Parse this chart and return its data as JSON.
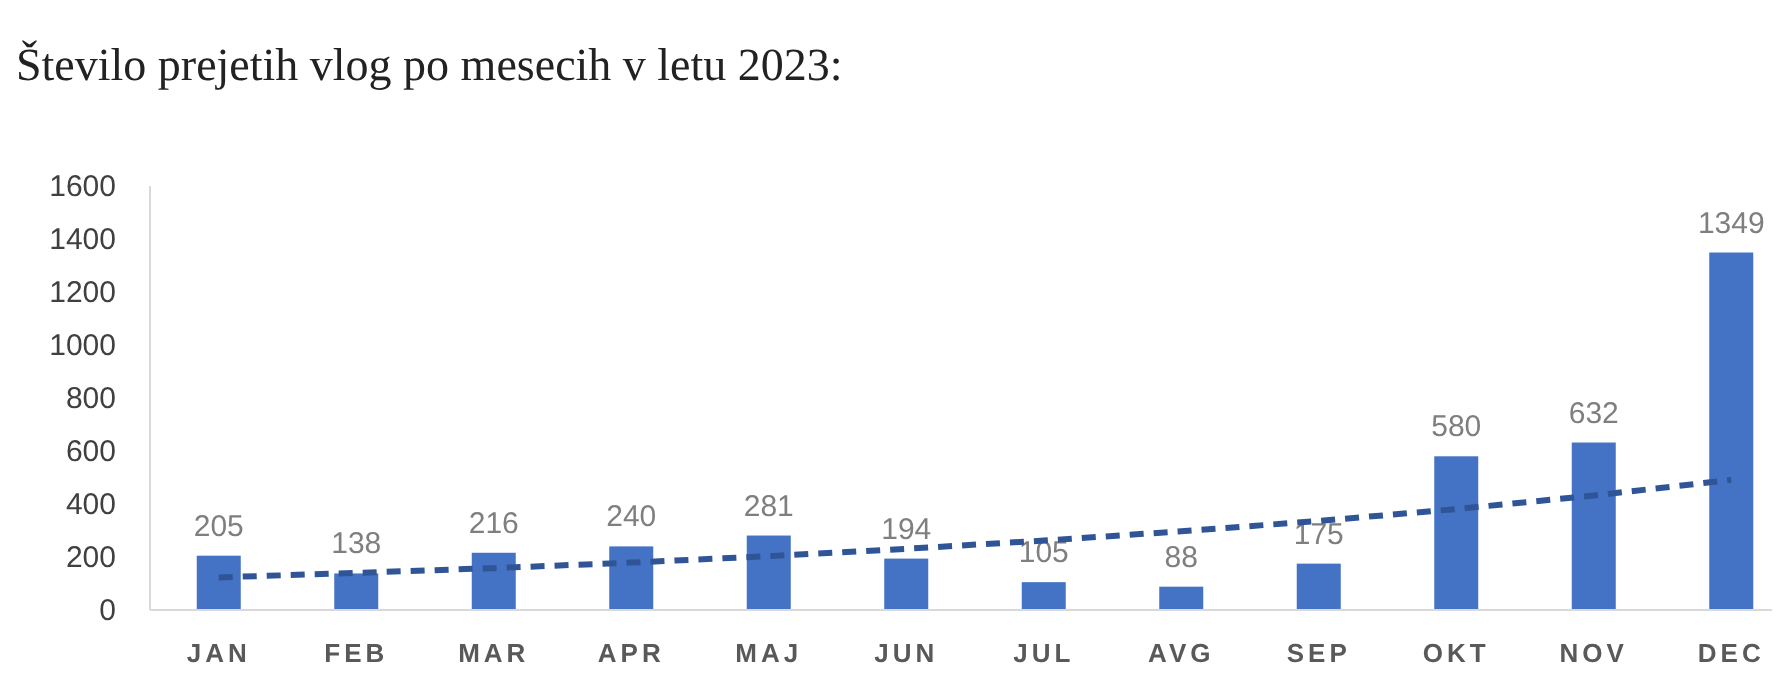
{
  "chart_data": {
    "type": "bar",
    "title": "Število prejetih vlog po mesecih v letu 2023:",
    "categories": [
      "JAN",
      "FEB",
      "MAR",
      "APR",
      "MAJ",
      "JUN",
      "JUL",
      "AVG",
      "SEP",
      "OKT",
      "NOV",
      "DEC"
    ],
    "series": [
      {
        "color": "#4472c4",
        "values": [
          205,
          138,
          216,
          240,
          281,
          194,
          105,
          88,
          175,
          580,
          632,
          1349
        ],
        "value_labels": [
          "205",
          "138",
          "216",
          "240",
          "281",
          "194",
          "105",
          "88",
          "175",
          "580",
          "632",
          "1349"
        ]
      },
      {
        "type": "line",
        "color": "#2f5597",
        "line_style": "dashed",
        "values": [
          123,
          140,
          158,
          179,
          203,
          231,
          262,
          297,
          336,
          381,
          432,
          491
        ]
      }
    ],
    "ylim": [
      0,
      1600
    ],
    "yticks": [
      0,
      200,
      400,
      600,
      800,
      1000,
      1200,
      1400,
      1600
    ],
    "grid": false
  }
}
